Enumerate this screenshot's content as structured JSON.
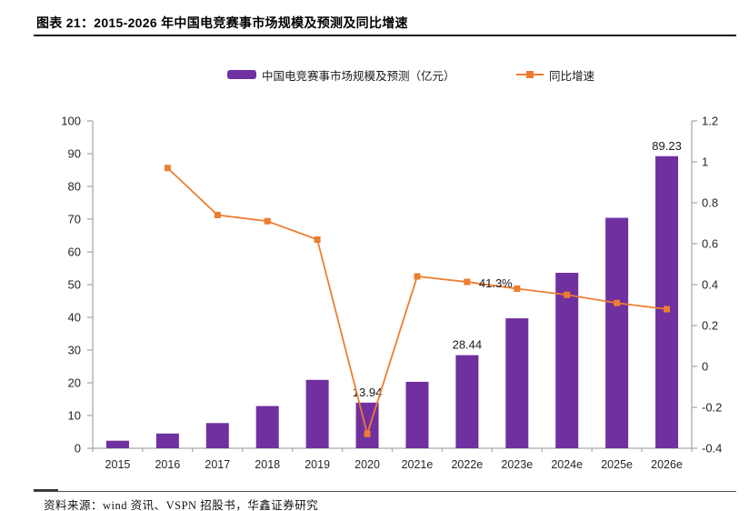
{
  "header": {
    "title": "图表 21：2015-2026 年中国电竞赛事市场规模及预测及同比增速"
  },
  "legend": {
    "bar_label": "中国电竞赛事市场规模及预测（亿元）",
    "line_label": "同比增速"
  },
  "colors": {
    "bar": "#7030A0",
    "line": "#ED7D31",
    "axis": "#ABABAB",
    "text": "#262626"
  },
  "chart_data": {
    "type": "combo",
    "title": "2015-2026 年中国电竞赛事市场规模及预测及同比增速",
    "categories": [
      "2015",
      "2016",
      "2017",
      "2018",
      "2019",
      "2020",
      "2021e",
      "2022e",
      "2023e",
      "2024e",
      "2025e",
      "2026e"
    ],
    "series": [
      {
        "name": "中国电竞赛事市场规模及预测（亿元）",
        "type": "bar",
        "axis": "left",
        "color": "#7030A0",
        "values": [
          2.3,
          4.5,
          7.7,
          12.9,
          20.9,
          13.94,
          20.3,
          28.44,
          39.7,
          53.6,
          70.4,
          89.23
        ],
        "data_labels": [
          null,
          null,
          null,
          null,
          null,
          "13.94",
          null,
          "28.44",
          null,
          null,
          null,
          "89.23"
        ]
      },
      {
        "name": "同比增速",
        "type": "line",
        "axis": "right",
        "color": "#ED7D31",
        "values": [
          null,
          0.97,
          0.74,
          0.71,
          0.62,
          -0.33,
          0.44,
          0.413,
          0.38,
          0.35,
          0.31,
          0.28
        ],
        "data_labels": [
          null,
          null,
          null,
          null,
          null,
          null,
          null,
          "41.3%",
          null,
          null,
          null,
          null
        ]
      }
    ],
    "left_axis": {
      "min": 0,
      "max": 100,
      "step": 10,
      "tick_labels": [
        "0",
        "10",
        "20",
        "30",
        "40",
        "50",
        "60",
        "70",
        "80",
        "90",
        "100"
      ]
    },
    "right_axis": {
      "min": -0.4,
      "max": 1.2,
      "step": 0.2,
      "tick_labels": [
        "-0.4",
        "-0.2",
        "0",
        "0.2",
        "0.4",
        "0.6",
        "0.8",
        "1",
        "1.2"
      ]
    },
    "grid": false,
    "legend_position": "top"
  },
  "footer": {
    "source": "资料来源：wind 资讯、VSPN 招股书，华鑫证券研究"
  }
}
